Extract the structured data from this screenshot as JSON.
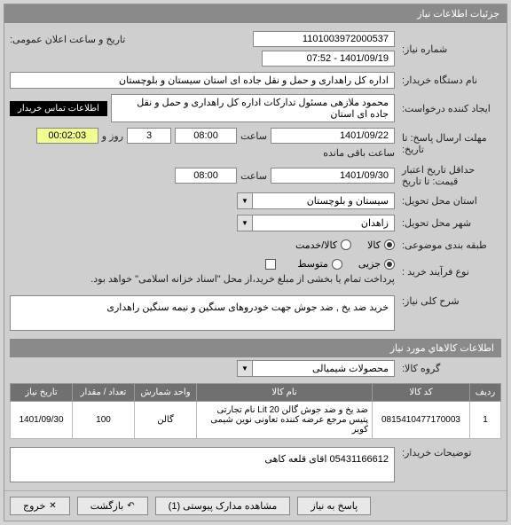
{
  "header": {
    "title": "جزئیات اطلاعات نیاز"
  },
  "fields": {
    "req_no_label": "شماره نیاز:",
    "req_no": "1101003972000537",
    "announce_label": "تاریخ و ساعت اعلان عمومی:",
    "announce": "1401/09/19 - 07:52",
    "buyer_org_label": "نام دستگاه خریدار:",
    "buyer_org": "اداره کل راهداری و حمل و نقل جاده ای استان سیستان و بلوچستان",
    "creator_label": "ایجاد کننده درخواست:",
    "creator": "محمود ملازهی مسئول تدارکات اداره کل راهداری و حمل و نقل جاده ای استان",
    "contact_link": "اطلاعات تماس خریدار",
    "deadline_until_label": "مهلت ارسال پاسخ: تا تاریخ:",
    "deadline_date": "1401/09/22",
    "time_label": "ساعت",
    "deadline_time": "08:00",
    "days": "3",
    "days_suffix": "روز و",
    "countdown": "00:02:03",
    "countdown_suffix": "ساعت باقی مانده",
    "validity_label": "حداقل تاریخ اعتبار قیمت: تا تاریخ",
    "validity_date": "1401/09/30",
    "validity_time": "08:00",
    "province_label": "استان محل تحویل:",
    "province": "سیستان و بلوچستان",
    "city_label": "شهر محل تحویل:",
    "city": "زاهدان",
    "subject_cat_label": "طبقه بندی موضوعی:",
    "opt_kala": "کالا",
    "opt_service": "کالا/خدمت",
    "purchase_type_label": "نوع فرآیند خرید :",
    "opt_overall": "جزیی",
    "opt_medium": "متوسط",
    "payment_note": "پرداخت تمام یا بخشی از مبلغ خرید،از محل \"اسناد خزانه اسلامی\" خواهد بود.",
    "desc_label": "شرح کلی نیاز:",
    "desc": "خرید ضد یخ , ضد جوش جهت خودروهای سنگین و نیمه سنگین راهداری",
    "items_bar": "اطلاعات کالاهاي مورد نياز",
    "goods_group_label": "گروه کالا:",
    "goods_group": "محصولات شیمیالی",
    "remarks_label": "توضیحات خریدار:",
    "remarks": "05431166612 اقای قلعه کاهی"
  },
  "table": {
    "headers": {
      "row": "ردیف",
      "code": "کد کالا",
      "name": "نام کالا",
      "unit": "واحد شمارش",
      "qty": "تعداد / مقدار",
      "date": "تاریخ نیاز"
    },
    "rows": [
      {
        "row": "1",
        "code": "0815410477170003",
        "name": "ضد یخ و ضد جوش گالن Lit 20 نام تجارتی پتیس مرجع عرضه کننده تعاونی نوین شیمی کویر",
        "unit": "گالن",
        "qty": "100",
        "date": "1401/09/30"
      }
    ]
  },
  "footer": {
    "respond": "پاسخ به نیاز",
    "attachments": "مشاهده مدارک پیوستی (1)",
    "back": "بازگشت",
    "exit": "خروج"
  },
  "colors": {
    "header_bg": "#8a8a8a",
    "panel_bg": "#cfcfcf",
    "highlight": "#f1ff8f",
    "link_bg": "#000000"
  }
}
